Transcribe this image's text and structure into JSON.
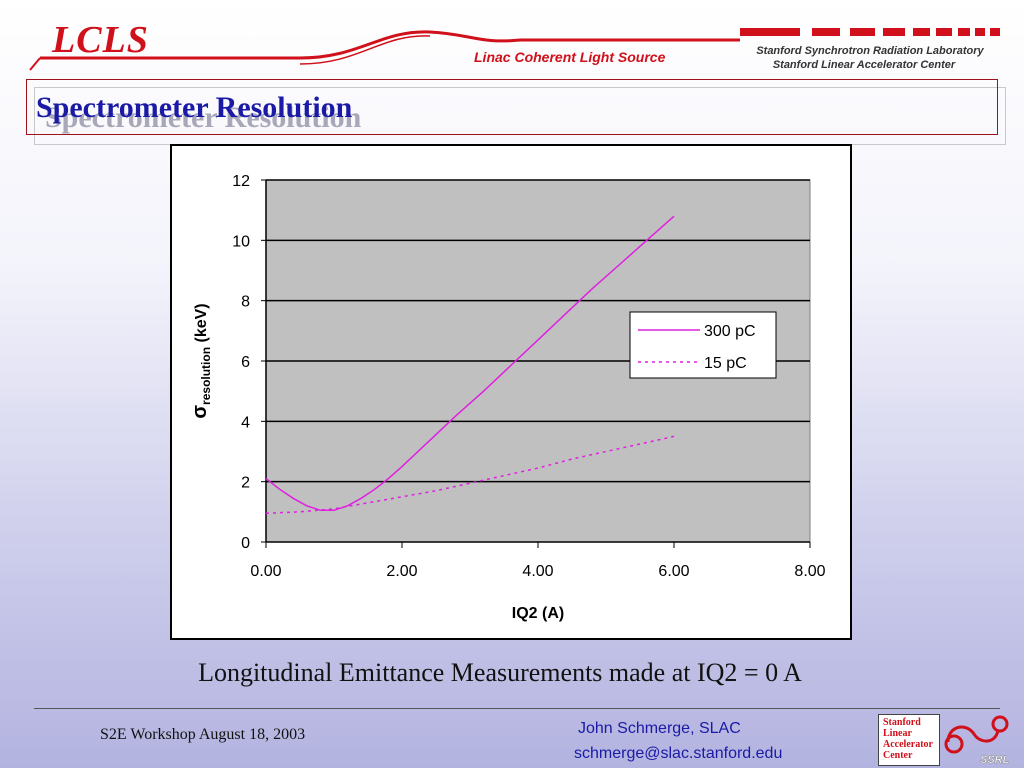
{
  "header": {
    "logo": "LCLS",
    "subtitle": "Linac Coherent Light Source",
    "lab_line1": "Stanford Synchrotron Radiation Laboratory",
    "lab_line2": "Stanford Linear Accelerator Center"
  },
  "slide": {
    "title": "Spectrometer Resolution",
    "caption": "Longitudinal Emittance Measurements made at IQ2 = 0 A"
  },
  "footer": {
    "left": "S2E Workshop August 18, 2003",
    "name": "John Schmerge, SLAC",
    "email": "schmerge@slac.stanford.edu",
    "logo_words": [
      "Stanford",
      "Linear",
      "Accelerator",
      "Center"
    ],
    "ssrl": "SSRL"
  },
  "colors": {
    "accent_red": "#d0101a",
    "title_blue": "#1a1aa6",
    "series": "#e020e0",
    "plot_bg": "#c0c0c0"
  },
  "chart_data": {
    "type": "line",
    "title": "",
    "xlabel": "IQ2 (A)",
    "ylabel_symbol": "σ",
    "ylabel_sub": "resolution",
    "ylabel_unit": " (keV)",
    "xlim": [
      0,
      8
    ],
    "ylim": [
      0,
      12
    ],
    "xticks": [
      "0.00",
      "2.00",
      "4.00",
      "6.00",
      "8.00"
    ],
    "yticks": [
      "0",
      "2",
      "4",
      "6",
      "8",
      "10",
      "12"
    ],
    "grid": "horizontal",
    "legend_position": "right",
    "series": [
      {
        "name": "300 pC",
        "style": "solid",
        "points": [
          [
            0,
            2.1
          ],
          [
            0.2,
            1.75
          ],
          [
            0.4,
            1.45
          ],
          [
            0.6,
            1.2
          ],
          [
            0.8,
            1.05
          ],
          [
            1.0,
            1.05
          ],
          [
            1.2,
            1.2
          ],
          [
            1.4,
            1.45
          ],
          [
            1.6,
            1.75
          ],
          [
            1.8,
            2.1
          ],
          [
            2.0,
            2.5
          ],
          [
            2.4,
            3.35
          ],
          [
            2.8,
            4.2
          ],
          [
            3.2,
            5.0
          ],
          [
            3.6,
            5.85
          ],
          [
            4.0,
            6.7
          ],
          [
            4.4,
            7.55
          ],
          [
            4.8,
            8.4
          ],
          [
            5.2,
            9.2
          ],
          [
            5.6,
            10.0
          ],
          [
            6.0,
            10.8
          ]
        ]
      },
      {
        "name": "15 pC",
        "style": "dotted",
        "points": [
          [
            0,
            0.95
          ],
          [
            0.5,
            1.0
          ],
          [
            1.0,
            1.1
          ],
          [
            1.5,
            1.3
          ],
          [
            2.0,
            1.5
          ],
          [
            2.5,
            1.7
          ],
          [
            3.0,
            1.95
          ],
          [
            3.5,
            2.2
          ],
          [
            4.0,
            2.45
          ],
          [
            4.5,
            2.75
          ],
          [
            5.0,
            3.0
          ],
          [
            5.5,
            3.25
          ],
          [
            6.0,
            3.5
          ]
        ]
      }
    ]
  }
}
